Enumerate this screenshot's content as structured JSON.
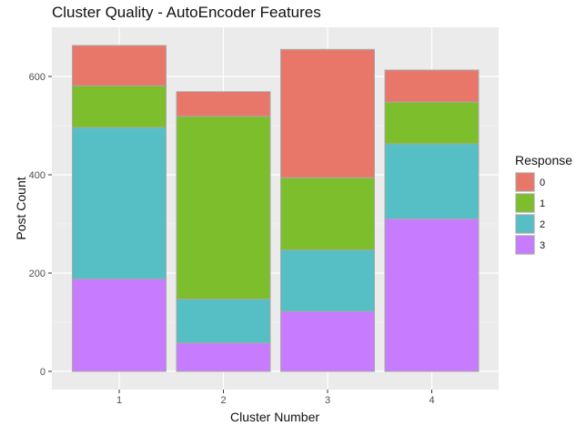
{
  "chart_data": {
    "type": "bar",
    "stacked": true,
    "title": "Cluster Quality - AutoEncoder Features",
    "xlabel": "Cluster Number",
    "ylabel": "Post Count",
    "categories": [
      "1",
      "2",
      "3",
      "4"
    ],
    "ylim": [
      0,
      665
    ],
    "yticks": [
      0,
      200,
      400,
      600
    ],
    "legend": {
      "title": "Response",
      "position": "right"
    },
    "grid": true,
    "series": [
      {
        "name": "3",
        "color": "#C77CFF",
        "values": [
          188,
          58,
          122,
          310
        ]
      },
      {
        "name": "2",
        "color": "#56BEC5",
        "values": [
          308,
          89,
          125,
          153
        ]
      },
      {
        "name": "1",
        "color": "#7CBE2B",
        "values": [
          85,
          372,
          147,
          85
        ]
      },
      {
        "name": "0",
        "color": "#E8776A",
        "values": [
          82,
          50,
          261,
          65
        ]
      }
    ]
  }
}
